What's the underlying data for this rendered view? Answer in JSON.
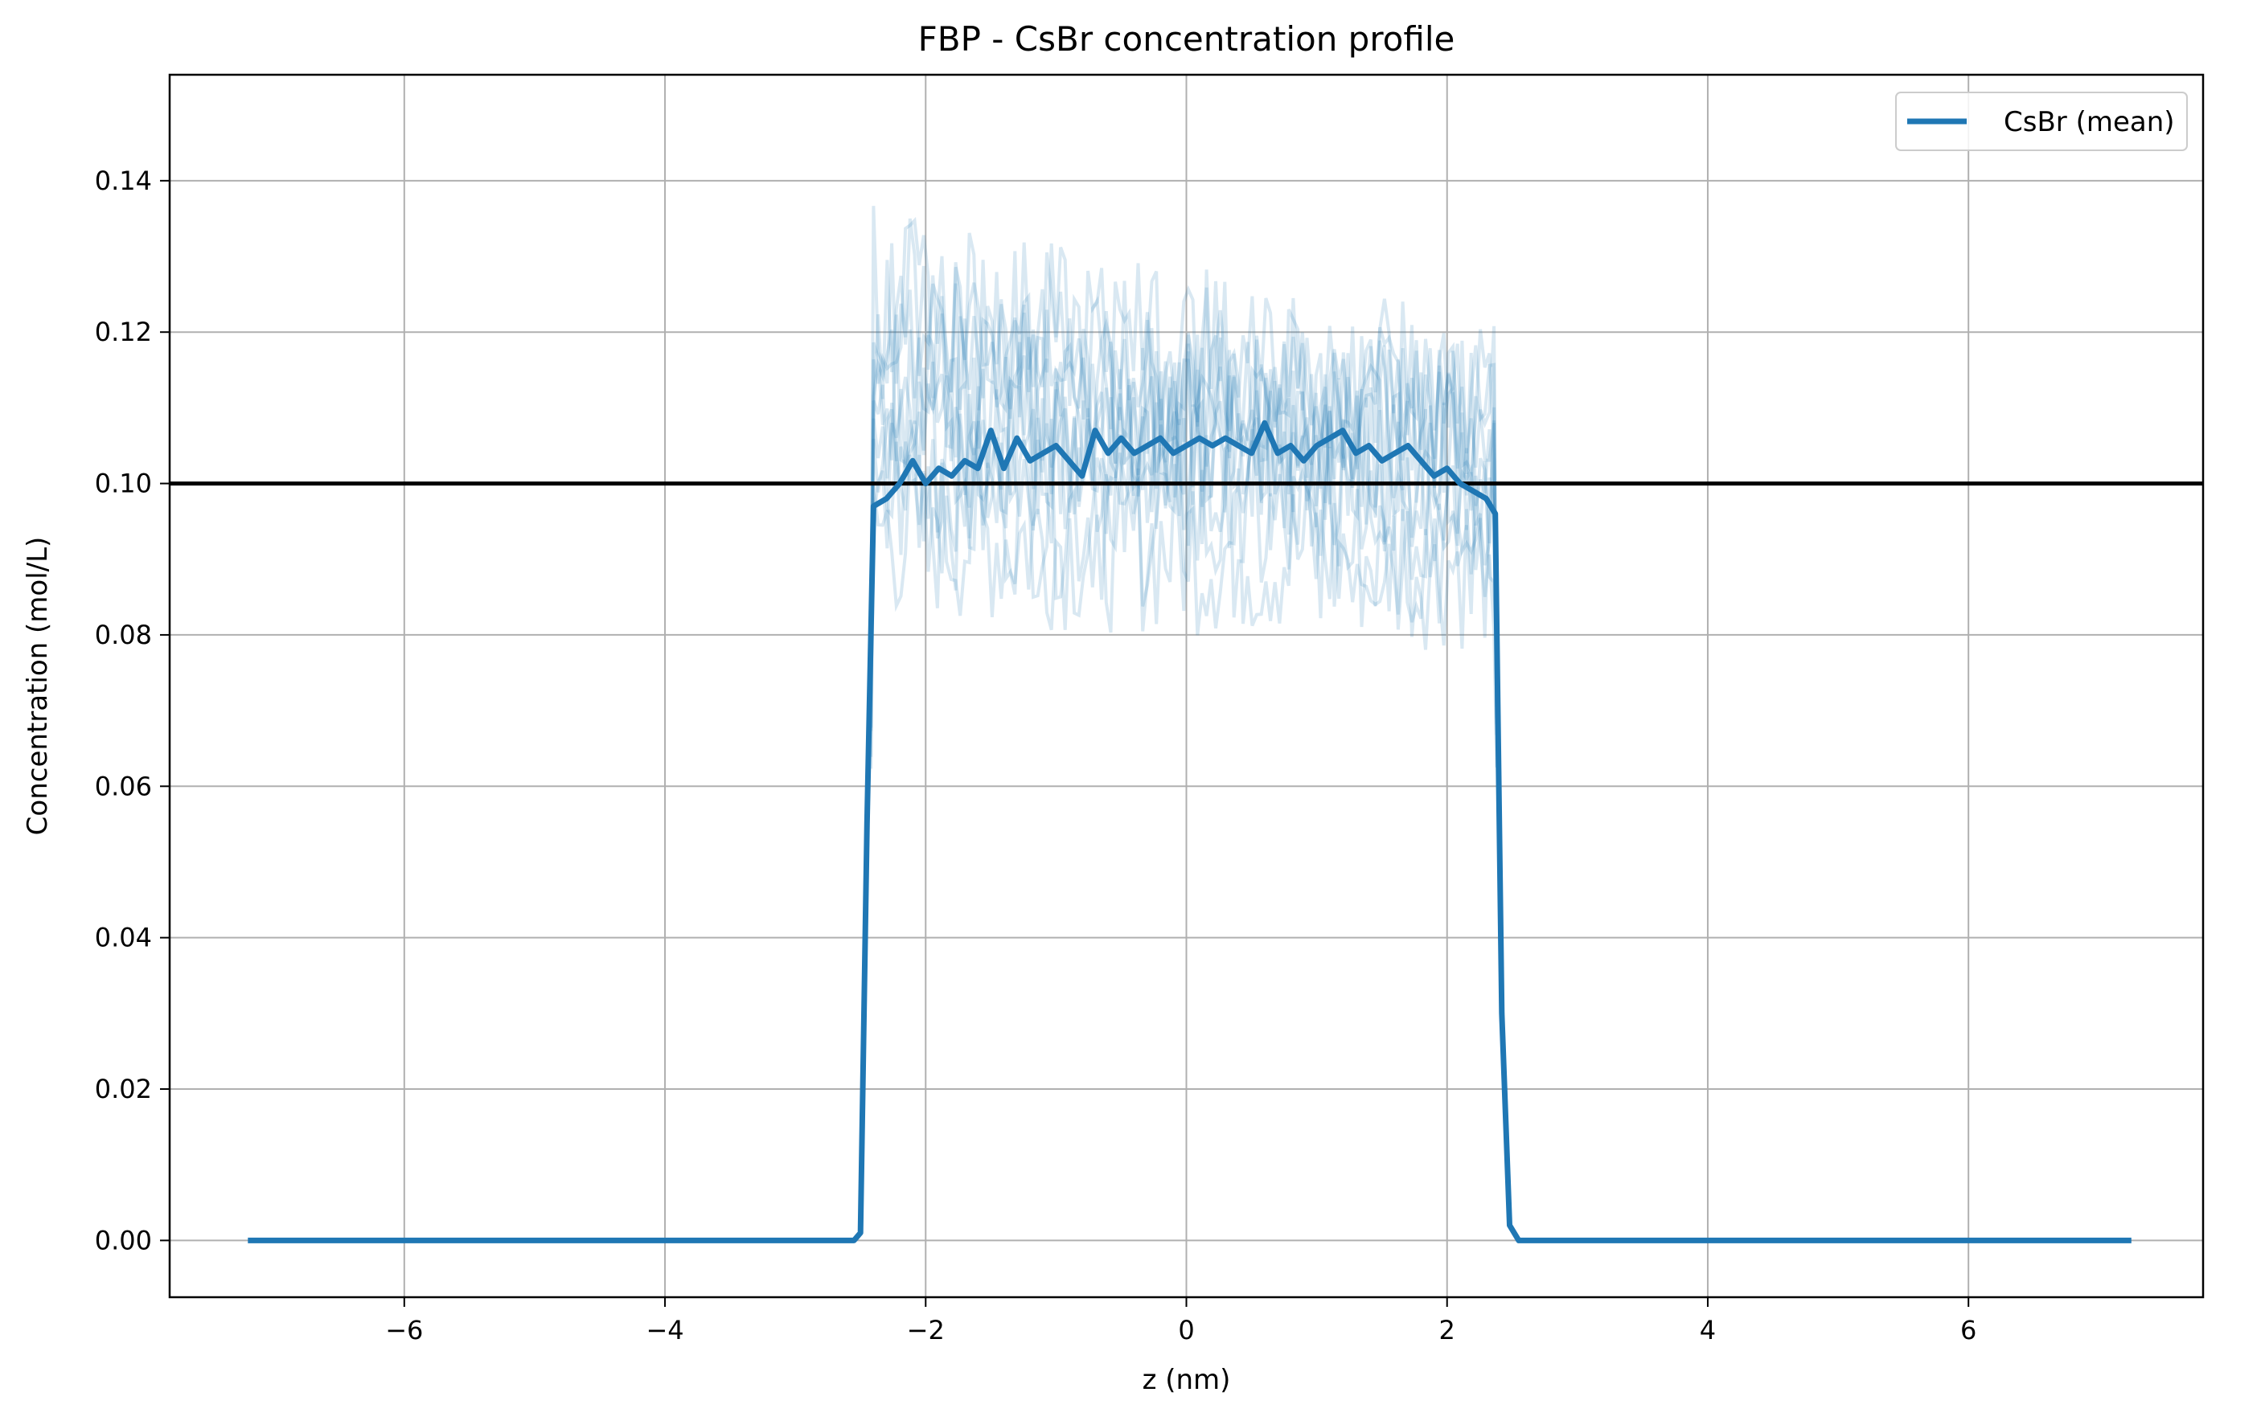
{
  "chart_data": {
    "type": "line",
    "title": "FBP - CsBr concentration profile",
    "xlabel": "z (nm)",
    "ylabel": "Concentration (mol/L)",
    "xlim": [
      -7.8,
      7.8
    ],
    "ylim": [
      -0.0075,
      0.154
    ],
    "x_ticks": [
      -6,
      -4,
      -2,
      0,
      2,
      4,
      6
    ],
    "x_tick_labels": [
      "−6",
      "−4",
      "−2",
      "0",
      "2",
      "4",
      "6"
    ],
    "y_ticks": [
      0.0,
      0.02,
      0.04,
      0.06,
      0.08,
      0.1,
      0.12,
      0.14
    ],
    "y_tick_labels": [
      "0.00",
      "0.02",
      "0.04",
      "0.06",
      "0.08",
      "0.10",
      "0.12",
      "0.14"
    ],
    "grid": true,
    "legend_position": "top-right",
    "reference_line": {
      "y": 0.1,
      "color": "#000000"
    },
    "colors": {
      "series": "#1f77b4",
      "grid": "#b0b0b0",
      "axes": "#000000"
    },
    "series": [
      {
        "name": "CsBr (mean)",
        "x": [
          -7.2,
          -2.55,
          -2.5,
          -2.45,
          -2.4,
          -2.3,
          -2.2,
          -2.1,
          -2.0,
          -1.9,
          -1.8,
          -1.7,
          -1.6,
          -1.5,
          -1.4,
          -1.3,
          -1.2,
          -1.1,
          -1.0,
          -0.9,
          -0.8,
          -0.7,
          -0.6,
          -0.5,
          -0.4,
          -0.3,
          -0.2,
          -0.1,
          0.0,
          0.1,
          0.2,
          0.3,
          0.4,
          0.5,
          0.6,
          0.7,
          0.8,
          0.9,
          1.0,
          1.1,
          1.2,
          1.3,
          1.4,
          1.5,
          1.6,
          1.7,
          1.8,
          1.9,
          2.0,
          2.1,
          2.2,
          2.3,
          2.37,
          2.42,
          2.48,
          2.55,
          7.25
        ],
        "values": [
          0.0,
          0.0,
          0.001,
          0.055,
          0.097,
          0.098,
          0.1,
          0.103,
          0.1,
          0.102,
          0.101,
          0.103,
          0.102,
          0.107,
          0.102,
          0.106,
          0.103,
          0.104,
          0.105,
          0.103,
          0.101,
          0.107,
          0.104,
          0.106,
          0.104,
          0.105,
          0.106,
          0.104,
          0.105,
          0.106,
          0.105,
          0.106,
          0.105,
          0.104,
          0.108,
          0.104,
          0.105,
          0.103,
          0.105,
          0.106,
          0.107,
          0.104,
          0.105,
          0.103,
          0.104,
          0.105,
          0.103,
          0.101,
          0.102,
          0.1,
          0.099,
          0.098,
          0.096,
          0.03,
          0.002,
          0.0,
          0.0
        ],
        "color": "#1f77b4"
      }
    ],
    "replicates_note_count": 10
  }
}
